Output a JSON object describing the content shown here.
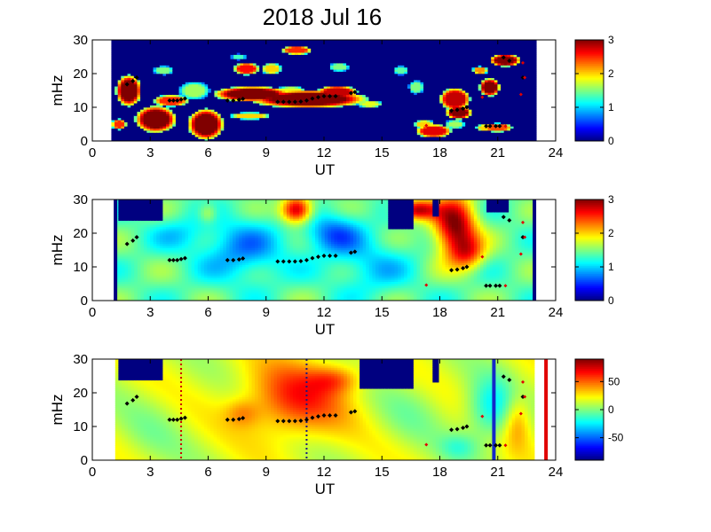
{
  "title": "2018 Jul 16",
  "chart_data": [
    {
      "type": "heatmap",
      "xlabel": "UT",
      "ylabel": "mHz",
      "xlim": [
        0,
        24
      ],
      "ylim": [
        0,
        30
      ],
      "xticks": [
        "0",
        "3",
        "6",
        "9",
        "12",
        "15",
        "18",
        "21",
        "24"
      ],
      "yticks": [
        "0",
        "10",
        "20",
        "30"
      ],
      "data_x_range": [
        1,
        23
      ],
      "colorbar": {
        "range": [
          0,
          3
        ],
        "ticks": [
          "0",
          "1",
          "2",
          "3"
        ],
        "colormap": "jet"
      },
      "background_level": 0,
      "blobs": [
        {
          "x": 1.9,
          "y": 15,
          "w": 0.5,
          "h": 3.5,
          "v": 3
        },
        {
          "x": 3.3,
          "y": 6.5,
          "w": 0.8,
          "h": 3,
          "v": 3
        },
        {
          "x": 5.9,
          "y": 5,
          "w": 0.7,
          "h": 3.5,
          "v": 3
        },
        {
          "x": 4.1,
          "y": 12,
          "w": 0.7,
          "h": 1.3,
          "v": 2.5
        },
        {
          "x": 5.3,
          "y": 15,
          "w": 0.6,
          "h": 2,
          "v": 1.6
        },
        {
          "x": 3.7,
          "y": 21,
          "w": 0.4,
          "h": 1,
          "v": 1.5
        },
        {
          "x": 8.3,
          "y": 14,
          "w": 1.5,
          "h": 1.7,
          "v": 3
        },
        {
          "x": 11.2,
          "y": 12.5,
          "w": 2.3,
          "h": 2,
          "v": 3
        },
        {
          "x": 12.7,
          "y": 14.5,
          "w": 0.8,
          "h": 1.5,
          "v": 2.8
        },
        {
          "x": 10.3,
          "y": 15,
          "w": 0.6,
          "h": 1,
          "v": 1.8
        },
        {
          "x": 8.0,
          "y": 21.5,
          "w": 0.5,
          "h": 1.4,
          "v": 2.6
        },
        {
          "x": 9.3,
          "y": 21.5,
          "w": 0.4,
          "h": 1.3,
          "v": 2
        },
        {
          "x": 10.6,
          "y": 27,
          "w": 0.6,
          "h": 1,
          "v": 2.5
        },
        {
          "x": 8.2,
          "y": 7.5,
          "w": 0.8,
          "h": 0.8,
          "v": 2
        },
        {
          "x": 12.8,
          "y": 22,
          "w": 0.4,
          "h": 1,
          "v": 1.5
        },
        {
          "x": 7.6,
          "y": 25,
          "w": 0.3,
          "h": 0.7,
          "v": 1.3
        },
        {
          "x": 14.4,
          "y": 11,
          "w": 0.5,
          "h": 0.8,
          "v": 1.8
        },
        {
          "x": 16.0,
          "y": 21,
          "w": 0.3,
          "h": 1,
          "v": 1.4
        },
        {
          "x": 17.7,
          "y": 3,
          "w": 0.7,
          "h": 1.5,
          "v": 2.7
        },
        {
          "x": 17.2,
          "y": 5,
          "w": 0.4,
          "h": 1,
          "v": 2
        },
        {
          "x": 18.8,
          "y": 12.5,
          "w": 0.6,
          "h": 2.5,
          "v": 2.8
        },
        {
          "x": 19.0,
          "y": 8.5,
          "w": 0.5,
          "h": 1.5,
          "v": 3
        },
        {
          "x": 18.8,
          "y": 5,
          "w": 0.4,
          "h": 1,
          "v": 1.6
        },
        {
          "x": 20.6,
          "y": 16,
          "w": 0.4,
          "h": 2,
          "v": 3
        },
        {
          "x": 21.4,
          "y": 24,
          "w": 0.6,
          "h": 1.4,
          "v": 3
        },
        {
          "x": 20.4,
          "y": 4,
          "w": 0.4,
          "h": 0.8,
          "v": 2
        },
        {
          "x": 21.0,
          "y": 4,
          "w": 0.6,
          "h": 1,
          "v": 2.4
        },
        {
          "x": 16.8,
          "y": 16,
          "w": 0.3,
          "h": 1.5,
          "v": 1.5
        },
        {
          "x": 20.1,
          "y": 21,
          "w": 0.3,
          "h": 0.9,
          "v": 2.2
        },
        {
          "x": 1.4,
          "y": 5,
          "w": 0.3,
          "h": 1.2,
          "v": 2.5
        }
      ],
      "masks": [],
      "vlines": []
    },
    {
      "type": "heatmap",
      "xlabel": "UT",
      "ylabel": "mHz",
      "xlim": [
        0,
        24
      ],
      "ylim": [
        0,
        30
      ],
      "xticks": [
        "0",
        "3",
        "6",
        "9",
        "12",
        "15",
        "18",
        "21",
        "24"
      ],
      "yticks": [
        "0",
        "10",
        "20",
        "30"
      ],
      "data_x_range": [
        1.2,
        22.9
      ],
      "colorbar": {
        "range": [
          0,
          3
        ],
        "ticks": [
          "0",
          "1",
          "2",
          "3"
        ],
        "colormap": "jet"
      },
      "background_level": 1.4,
      "blobs": [
        {
          "x": 7.8,
          "y": 15,
          "w": 2.2,
          "h": 9,
          "v": -0.6
        },
        {
          "x": 12.5,
          "y": 20,
          "w": 1.5,
          "h": 6,
          "v": -0.7
        },
        {
          "x": 14.5,
          "y": 10,
          "w": 2,
          "h": 8,
          "v": -0.4
        },
        {
          "x": 4.5,
          "y": 20,
          "w": 1.5,
          "h": 5,
          "v": -0.3
        },
        {
          "x": 10.6,
          "y": 27,
          "w": 0.8,
          "h": 4,
          "v": 1.6
        },
        {
          "x": 16.8,
          "y": 27,
          "w": 1,
          "h": 3,
          "v": 1.4
        },
        {
          "x": 18.8,
          "y": 22,
          "w": 1.1,
          "h": 9,
          "v": 1.6
        },
        {
          "x": 19.5,
          "y": 14,
          "w": 0.9,
          "h": 5,
          "v": 0.8
        },
        {
          "x": 6.0,
          "y": 26,
          "w": 0.5,
          "h": 3,
          "v": 0.5
        }
      ],
      "masks": [
        {
          "x0": 1.4,
          "x1": 3.6,
          "y0": 24,
          "y1": 30
        },
        {
          "x0": 15.4,
          "x1": 16.6,
          "y0": 21.5,
          "y1": 30
        },
        {
          "x0": 17.6,
          "x1": 17.9,
          "y0": 25,
          "y1": 30
        },
        {
          "x0": 20.5,
          "x1": 21.6,
          "y0": 26,
          "y1": 30
        }
      ],
      "vlines": [
        {
          "x": 1.2,
          "color": "#000080",
          "width": 4,
          "style": "solid"
        },
        {
          "x": 22.9,
          "color": "#000080",
          "width": 4,
          "style": "solid"
        }
      ]
    },
    {
      "type": "heatmap",
      "xlabel": "UT",
      "ylabel": "mHz",
      "xlim": [
        0,
        24
      ],
      "ylim": [
        0,
        30
      ],
      "xticks": [
        "0",
        "3",
        "6",
        "9",
        "12",
        "15",
        "18",
        "21",
        "24"
      ],
      "yticks": [
        "0",
        "10",
        "20",
        "30"
      ],
      "data_x_range": [
        1.2,
        22.9
      ],
      "colorbar": {
        "range": [
          -90,
          90
        ],
        "ticks": [
          "50",
          "0",
          "-50"
        ],
        "tick_values": [
          50,
          0,
          -50
        ],
        "colormap": "jet"
      },
      "background_level": 15,
      "blobs": [
        {
          "x": 10.5,
          "y": 18,
          "w": 2.6,
          "h": 11,
          "v": 45
        },
        {
          "x": 12.6,
          "y": 24,
          "w": 1.3,
          "h": 4,
          "v": 30
        },
        {
          "x": 7.8,
          "y": 14,
          "w": 0.9,
          "h": 4,
          "v": 20
        },
        {
          "x": 16.5,
          "y": 15,
          "w": 1.8,
          "h": 10,
          "v": -10
        },
        {
          "x": 3.0,
          "y": 8,
          "w": 1.7,
          "h": 10,
          "v": -8
        },
        {
          "x": 20.7,
          "y": 15,
          "w": 1.3,
          "h": 9,
          "v": -40
        },
        {
          "x": 22.0,
          "y": 12,
          "w": 0.7,
          "h": 8,
          "v": 30
        },
        {
          "x": 19.0,
          "y": 4,
          "w": 1,
          "h": 4,
          "v": -20
        }
      ],
      "masks": [
        {
          "x0": 1.4,
          "x1": 3.6,
          "y0": 24,
          "y1": 30
        },
        {
          "x0": 13.8,
          "x1": 16.6,
          "y0": 21,
          "y1": 30
        },
        {
          "x0": 17.6,
          "x1": 17.9,
          "y0": 23,
          "y1": 30
        }
      ],
      "vlines": [
        {
          "x": 4.6,
          "color": "#cc0000",
          "width": 2,
          "style": "dotted"
        },
        {
          "x": 11.1,
          "color": "#1a1a80",
          "width": 2,
          "style": "dotted"
        },
        {
          "x": 20.8,
          "color": "#1428c8",
          "width": 4,
          "style": "solid"
        },
        {
          "x": 23.5,
          "color": "#e00000",
          "width": 4,
          "style": "solid"
        }
      ]
    }
  ],
  "black_markers": [
    [
      1.8,
      16.8
    ],
    [
      2.1,
      17.8
    ],
    [
      2.3,
      18.8
    ],
    [
      4.0,
      12
    ],
    [
      4.2,
      12
    ],
    [
      4.4,
      12
    ],
    [
      4.6,
      12.3
    ],
    [
      4.8,
      12.6
    ],
    [
      7.0,
      12
    ],
    [
      7.3,
      12
    ],
    [
      7.6,
      12.2
    ],
    [
      7.8,
      12.5
    ],
    [
      9.6,
      11.6
    ],
    [
      9.9,
      11.6
    ],
    [
      10.2,
      11.6
    ],
    [
      10.5,
      11.6
    ],
    [
      10.8,
      11.7
    ],
    [
      11.1,
      12
    ],
    [
      11.4,
      12.6
    ],
    [
      11.7,
      13
    ],
    [
      12.0,
      13.3
    ],
    [
      12.3,
      13.3
    ],
    [
      12.6,
      13.3
    ],
    [
      13.4,
      14.2
    ],
    [
      13.6,
      14.5
    ],
    [
      18.6,
      9
    ],
    [
      18.9,
      9.2
    ],
    [
      19.2,
      9.6
    ],
    [
      19.4,
      10
    ],
    [
      20.4,
      4.4
    ],
    [
      20.6,
      4.4
    ],
    [
      20.9,
      4.4
    ],
    [
      21.1,
      4.4
    ],
    [
      21.3,
      24.8
    ],
    [
      21.6,
      23.8
    ],
    [
      22.3,
      18.8
    ]
  ],
  "red_markers": [
    [
      17.3,
      4.6
    ],
    [
      20.2,
      13
    ],
    [
      21.4,
      4.4
    ],
    [
      22.2,
      13.8
    ],
    [
      22.3,
      23.2
    ],
    [
      22.4,
      18.8
    ]
  ]
}
